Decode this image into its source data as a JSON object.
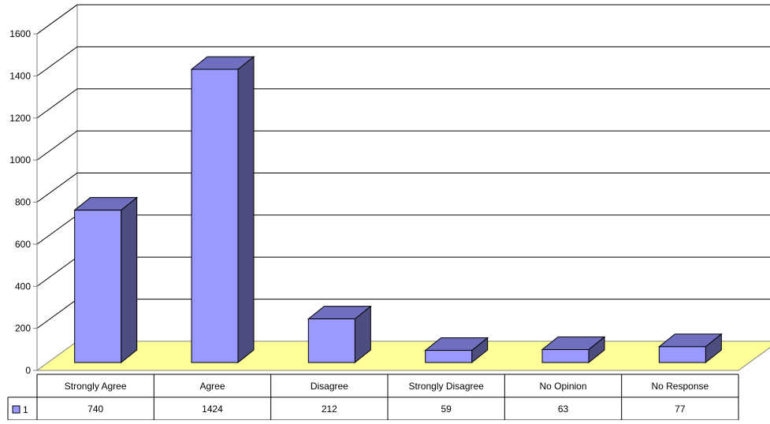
{
  "chart_data": {
    "type": "bar",
    "style": "3d-column-with-data-table",
    "categories": [
      "Strongly Agree",
      "Agree",
      "Disagree",
      "Strongly Disagree",
      "No Opinion",
      "No Response"
    ],
    "series": [
      {
        "name": "1",
        "values": [
          740,
          1424,
          212,
          59,
          63,
          77
        ]
      }
    ],
    "ylim": [
      0,
      1600
    ],
    "yticks": [
      0,
      200,
      400,
      600,
      800,
      1000,
      1200,
      1400,
      1600
    ],
    "ytick_labels": [
      "0",
      "200",
      "400",
      "600",
      "800",
      "1000",
      "1200",
      "1400",
      "1600"
    ],
    "grid": true,
    "legend": "data-table-left",
    "colors": {
      "bar_front": "#9999ff",
      "bar_side": "#4d4d80",
      "bar_top": "#6f6fbf",
      "floor": "#ffff99",
      "grid": "#000000"
    }
  }
}
